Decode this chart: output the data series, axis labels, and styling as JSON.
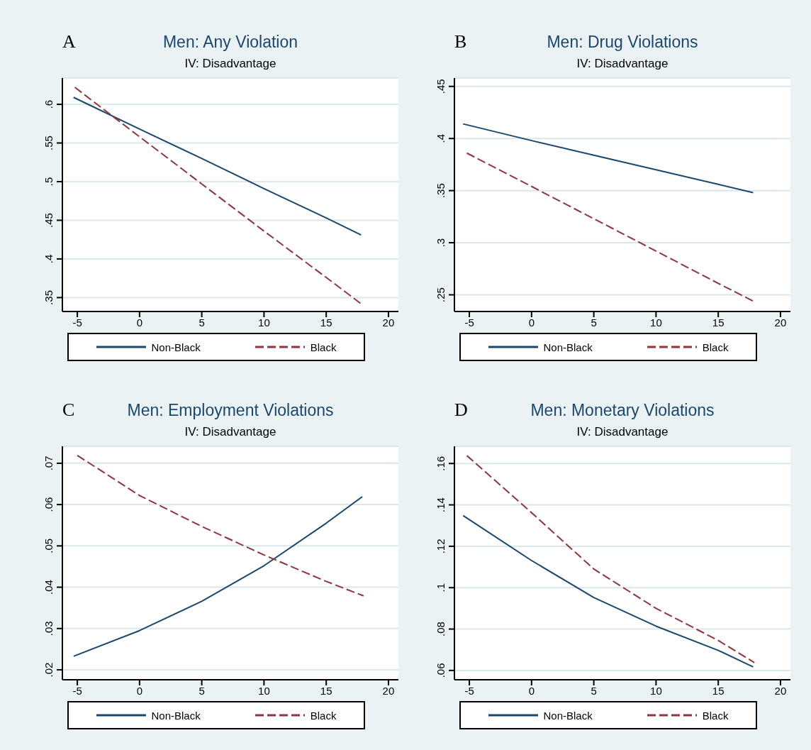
{
  "chart_data": [
    {
      "type": "line",
      "title": "Men: Any Violation",
      "subtitle": "IV: Disadvantage",
      "annotations": [
        "A"
      ],
      "x": [
        -5.3,
        0,
        5,
        10,
        15,
        17.8
      ],
      "xlim": [
        -6.2,
        20.8
      ],
      "xticks": [
        -5,
        0,
        5,
        10,
        15,
        20
      ],
      "ylim": [
        0.332,
        0.634
      ],
      "yticks": [
        {
          "value": 0.35,
          "label": ".35"
        },
        {
          "value": 0.4,
          "label": ".4"
        },
        {
          "value": 0.45,
          "label": ".45"
        },
        {
          "value": 0.5,
          "label": ".5"
        },
        {
          "value": 0.55,
          "label": ".55"
        },
        {
          "value": 0.6,
          "label": ".6"
        }
      ],
      "grid": "y",
      "legend": "bottom",
      "series": [
        {
          "name": "Non-Black",
          "color": "#1a476f",
          "line_style": "solid",
          "values": [
            0.609,
            0.568,
            0.53,
            0.491,
            0.453,
            0.431
          ]
        },
        {
          "name": "Black",
          "color": "#90353b",
          "line_style": "dashed",
          "x": [
            -5.2,
            0,
            5,
            10,
            15,
            17.8
          ],
          "values": [
            0.622,
            0.558,
            0.497,
            0.436,
            0.376,
            0.342
          ]
        }
      ]
    },
    {
      "type": "line",
      "title": "Men: Drug Violations",
      "subtitle": "IV: Disadvantage",
      "annotations": [
        "B"
      ],
      "x": [
        -5.5,
        0,
        5,
        10,
        15,
        17.8
      ],
      "xlim": [
        -6.2,
        20.8
      ],
      "xticks": [
        -5,
        0,
        5,
        10,
        15,
        20
      ],
      "ylim": [
        0.234,
        0.458
      ],
      "yticks": [
        {
          "value": 0.25,
          "label": ".25"
        },
        {
          "value": 0.3,
          "label": ".3"
        },
        {
          "value": 0.35,
          "label": ".35"
        },
        {
          "value": 0.4,
          "label": ".4"
        },
        {
          "value": 0.45,
          "label": ".45"
        }
      ],
      "grid": "y",
      "legend": "bottom",
      "series": [
        {
          "name": "Non-Black",
          "color": "#1a476f",
          "line_style": "solid",
          "values": [
            0.414,
            0.398,
            0.384,
            0.37,
            0.356,
            0.348
          ]
        },
        {
          "name": "Black",
          "color": "#90353b",
          "line_style": "dashed",
          "x": [
            -5.2,
            0,
            5,
            10,
            15,
            17.8
          ],
          "values": [
            0.386,
            0.354,
            0.323,
            0.292,
            0.261,
            0.244
          ]
        }
      ]
    },
    {
      "type": "line",
      "title": "Men: Employment Violations",
      "subtitle": "IV: Disadvantage",
      "annotations": [
        "C"
      ],
      "x": [
        -5.3,
        0,
        5,
        10,
        15,
        17.9
      ],
      "xlim": [
        -6.2,
        20.8
      ],
      "xticks": [
        -5,
        0,
        5,
        10,
        15,
        20
      ],
      "ylim": [
        0.0176,
        0.0741
      ],
      "yticks": [
        {
          "value": 0.02,
          "label": ".02"
        },
        {
          "value": 0.03,
          "label": ".03"
        },
        {
          "value": 0.04,
          "label": ".04"
        },
        {
          "value": 0.05,
          "label": ".05"
        },
        {
          "value": 0.06,
          "label": ".06"
        },
        {
          "value": 0.07,
          "label": ".07"
        }
      ],
      "grid": "y",
      "legend": "bottom",
      "series": [
        {
          "name": "Non-Black",
          "color": "#1a476f",
          "line_style": "solid",
          "values": [
            0.0233,
            0.0295,
            0.0366,
            0.0452,
            0.0555,
            0.0619
          ]
        },
        {
          "name": "Black",
          "color": "#90353b",
          "line_style": "dashed",
          "x": [
            -5,
            0,
            5,
            10,
            15,
            18
          ],
          "values": [
            0.0719,
            0.0622,
            0.0547,
            0.0478,
            0.0414,
            0.0379
          ]
        }
      ]
    },
    {
      "type": "line",
      "title": "Men: Monetary Violations",
      "subtitle": "IV: Disadvantage",
      "annotations": [
        "D"
      ],
      "x": [
        -5.5,
        0,
        5,
        10,
        15,
        17.8
      ],
      "xlim": [
        -6.2,
        20.8
      ],
      "xticks": [
        -5,
        0,
        5,
        10,
        15,
        20
      ],
      "ylim": [
        0.0555,
        0.1683
      ],
      "yticks": [
        {
          "value": 0.06,
          "label": ".06"
        },
        {
          "value": 0.08,
          "label": ".08"
        },
        {
          "value": 0.1,
          "label": ".1"
        },
        {
          "value": 0.12,
          "label": ".12"
        },
        {
          "value": 0.14,
          "label": ".14"
        },
        {
          "value": 0.16,
          "label": ".16"
        }
      ],
      "grid": "y",
      "legend": "bottom",
      "series": [
        {
          "name": "Non-Black",
          "color": "#1a476f",
          "line_style": "solid",
          "values": [
            0.1348,
            0.1131,
            0.0952,
            0.0814,
            0.0697,
            0.0617
          ]
        },
        {
          "name": "Black",
          "color": "#90353b",
          "line_style": "dashed",
          "x": [
            -5.2,
            0,
            5,
            10,
            15,
            17.9
          ],
          "values": [
            0.1638,
            0.1362,
            0.109,
            0.09,
            0.0745,
            0.0638
          ]
        }
      ]
    }
  ]
}
